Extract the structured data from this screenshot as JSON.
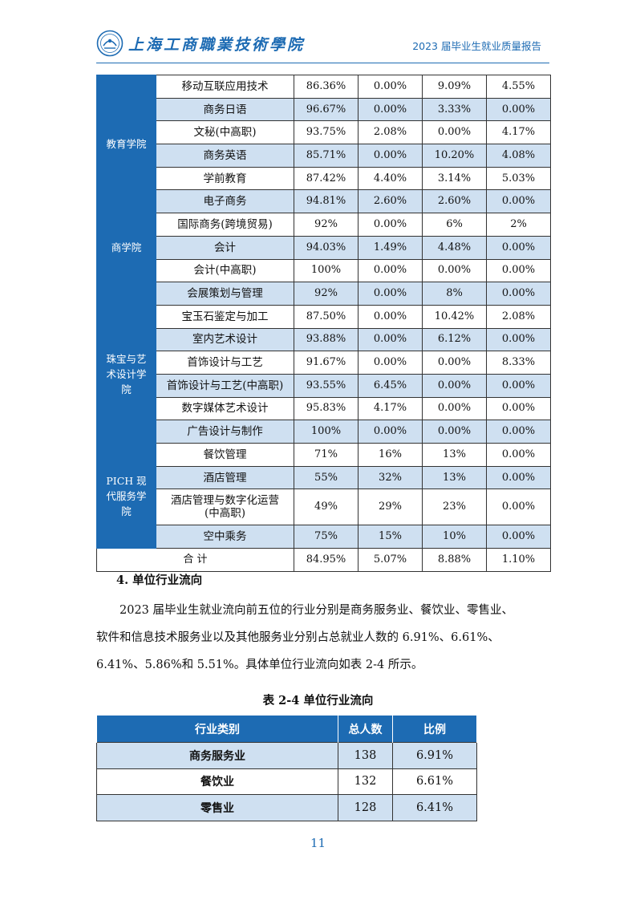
{
  "header": {
    "school_name": "上海工商職業技術學院",
    "report_title": "2023 届毕业生就业质量报告"
  },
  "employment_table": {
    "groups": [
      {
        "name": "",
        "rows": [
          {
            "major": "移动互联应用技术",
            "v1": "86.36%",
            "v2": "0.00%",
            "v3": "9.09%",
            "v4": "4.55%"
          }
        ]
      },
      {
        "name": "教育学院",
        "rows": [
          {
            "major": "商务日语",
            "v1": "96.67%",
            "v2": "0.00%",
            "v3": "3.33%",
            "v4": "0.00%"
          },
          {
            "major": "文秘(中高职)",
            "v1": "93.75%",
            "v2": "2.08%",
            "v3": "0.00%",
            "v4": "4.17%"
          },
          {
            "major": "商务英语",
            "v1": "85.71%",
            "v2": "0.00%",
            "v3": "10.20%",
            "v4": "4.08%"
          },
          {
            "major": "学前教育",
            "v1": "87.42%",
            "v2": "4.40%",
            "v3": "3.14%",
            "v4": "5.03%"
          }
        ]
      },
      {
        "name": "商学院",
        "rows": [
          {
            "major": "电子商务",
            "v1": "94.81%",
            "v2": "2.60%",
            "v3": "2.60%",
            "v4": "0.00%"
          },
          {
            "major": "国际商务(跨境贸易)",
            "v1": "92%",
            "v2": "0.00%",
            "v3": "6%",
            "v4": "2%"
          },
          {
            "major": "会计",
            "v1": "94.03%",
            "v2": "1.49%",
            "v3": "4.48%",
            "v4": "0.00%"
          },
          {
            "major": "会计(中高职)",
            "v1": "100%",
            "v2": "0.00%",
            "v3": "0.00%",
            "v4": "0.00%"
          },
          {
            "major": "会展策划与管理",
            "v1": "92%",
            "v2": "0.00%",
            "v3": "8%",
            "v4": "0.00%"
          }
        ]
      },
      {
        "name_lines": [
          "珠宝与艺",
          "术设计学",
          "院"
        ],
        "rows": [
          {
            "major": "宝玉石鉴定与加工",
            "v1": "87.50%",
            "v2": "0.00%",
            "v3": "10.42%",
            "v4": "2.08%"
          },
          {
            "major": "室内艺术设计",
            "v1": "93.88%",
            "v2": "0.00%",
            "v3": "6.12%",
            "v4": "0.00%"
          },
          {
            "major": "首饰设计与工艺",
            "v1": "91.67%",
            "v2": "0.00%",
            "v3": "0.00%",
            "v4": "8.33%"
          },
          {
            "major": "首饰设计与工艺(中高职)",
            "v1": "93.55%",
            "v2": "6.45%",
            "v3": "0.00%",
            "v4": "0.00%"
          },
          {
            "major": "数字媒体艺术设计",
            "v1": "95.83%",
            "v2": "4.17%",
            "v3": "0.00%",
            "v4": "0.00%"
          },
          {
            "major": "广告设计与制作",
            "v1": "100%",
            "v2": "0.00%",
            "v3": "0.00%",
            "v4": "0.00%"
          }
        ]
      },
      {
        "name_lines": [
          "PICH 现",
          "代服务学",
          "院"
        ],
        "rows": [
          {
            "major": "餐饮管理",
            "v1": "71%",
            "v2": "16%",
            "v3": "13%",
            "v4": "0.00%"
          },
          {
            "major": "酒店管理",
            "v1": "55%",
            "v2": "32%",
            "v3": "13%",
            "v4": "0.00%"
          },
          {
            "major_lines": [
              "酒店管理与数字化运营",
              "(中高职)"
            ],
            "v1": "49%",
            "v2": "29%",
            "v3": "23%",
            "v4": "0.00%"
          },
          {
            "major": "空中乘务",
            "v1": "75%",
            "v2": "15%",
            "v3": "10%",
            "v4": "0.00%"
          }
        ]
      }
    ],
    "total": {
      "label": "合 计",
      "v1": "84.95%",
      "v2": "5.07%",
      "v3": "8.88%",
      "v4": "1.10%"
    }
  },
  "section": {
    "heading": "4. 单位行业流向",
    "paragraph_lines": [
      "2023 届毕业生就业流向前五位的行业分别是商务服务业、餐饮业、零售业、",
      "软件和信息技术服务业以及其他服务业分别占总就业人数的 6.91%、6.61%、",
      "6.41%、5.86%和 5.51%。具体单位行业流向如表 2-4 所示。"
    ]
  },
  "industry_table": {
    "caption": "表 2-4 单位行业流向",
    "headers": [
      "行业类别",
      "总人数",
      "比例"
    ],
    "rows": [
      {
        "category": "商务服务业",
        "count": "138",
        "ratio": "6.91%"
      },
      {
        "category": "餐饮业",
        "count": "132",
        "ratio": "6.61%"
      },
      {
        "category": "零售业",
        "count": "128",
        "ratio": "6.41%"
      }
    ]
  },
  "page_number": "11",
  "colors": {
    "accent": "#1d6bb3",
    "row_alt": "#cfe0f1"
  }
}
